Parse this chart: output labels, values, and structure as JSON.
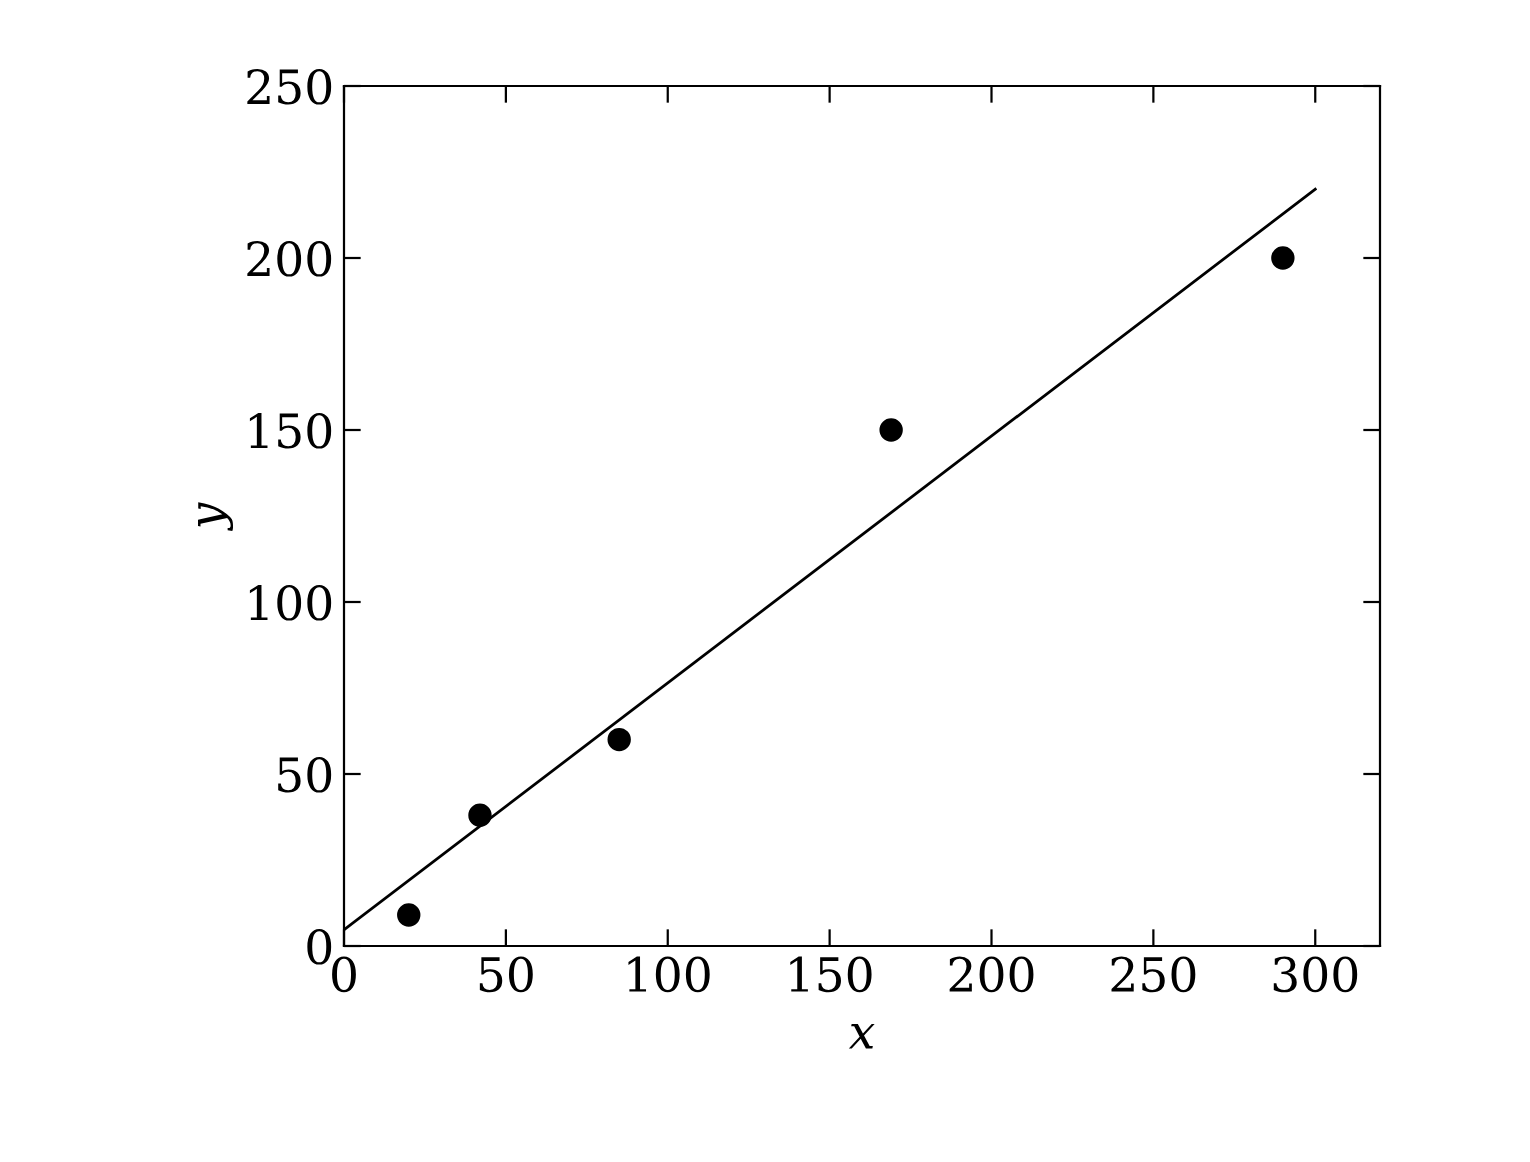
{
  "chart_data": {
    "type": "scatter",
    "xlabel": "x",
    "ylabel": "y",
    "xlim": [
      0,
      320
    ],
    "ylim": [
      0,
      250
    ],
    "xticks": [
      0,
      50,
      100,
      150,
      200,
      250,
      300
    ],
    "yticks": [
      0,
      50,
      100,
      150,
      200,
      250
    ],
    "series": [
      {
        "color": "#000000",
        "marker": "circle",
        "x": [
          20,
          42,
          85,
          169,
          290
        ],
        "values": [
          9,
          38,
          60,
          150,
          200
        ]
      },
      {
        "type": "line",
        "color": "#000000",
        "marker": "none",
        "x": [
          0,
          300
        ],
        "values": [
          4.7,
          220
        ]
      }
    ]
  }
}
